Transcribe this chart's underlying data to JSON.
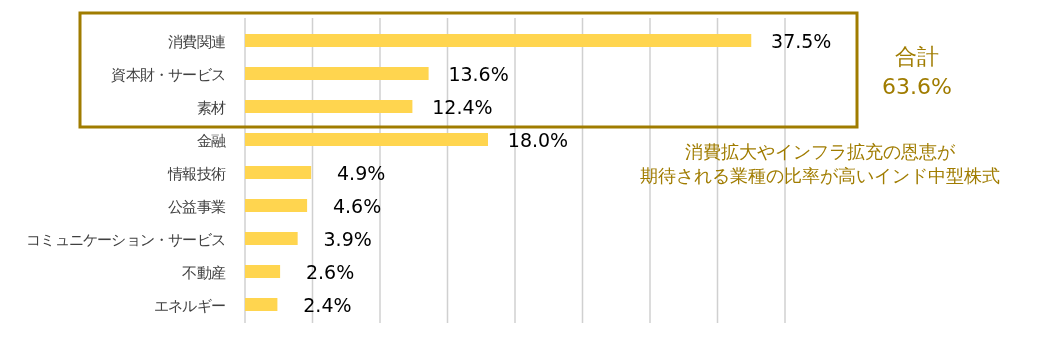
{
  "chart_data": {
    "type": "bar",
    "orientation": "horizontal",
    "categories": [
      "消費関連",
      "資本財・サービス",
      "素材",
      "金融",
      "情報技術",
      "公益事業",
      "コミュニケーション・サービス",
      "不動産",
      "エネルギー"
    ],
    "values": [
      37.5,
      13.6,
      12.4,
      18.0,
      4.9,
      4.6,
      3.9,
      2.6,
      2.4
    ],
    "value_labels": [
      "37.5%",
      "13.6%",
      "12.4%",
      "18.0%",
      "4.9%",
      "4.6%",
      "3.9%",
      "2.6%",
      "2.4%"
    ],
    "color": "#ffd54f",
    "xlim": [
      0,
      40
    ],
    "xticks": [
      {
        "value": 0,
        "label": null
      },
      {
        "value": 5,
        "label": null
      },
      {
        "value": 10,
        "label": null
      },
      {
        "value": 15,
        "label": null
      },
      {
        "value": 20,
        "label": null
      },
      {
        "value": 25,
        "label": null
      },
      {
        "value": 30,
        "label": null
      },
      {
        "value": 35,
        "label": null
      },
      {
        "value": 40,
        "label": null
      }
    ],
    "tick_labels": "y",
    "grid": "x",
    "annotations": [
      "合計 63.6%",
      "消費拡大やインフラ拡充の恩恵が",
      "期待される業種の比率が高いインド中型株式"
    ]
  }
}
